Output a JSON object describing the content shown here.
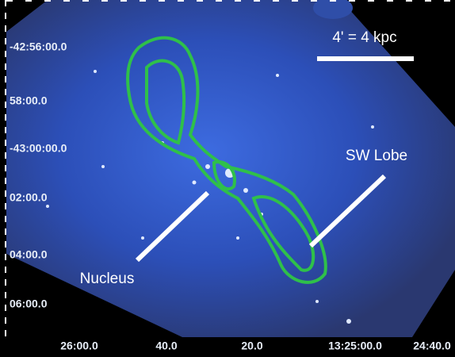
{
  "dec_labels": [
    "-42:56:00.0",
    "58:00.0",
    "-43:00:00.0",
    "02:00.0",
    "04:00.0",
    "06:00.0"
  ],
  "ra_labels": [
    "26:00.0",
    "40.0",
    "20.0",
    "13:25:00.0",
    "24:40.0"
  ],
  "annotations": {
    "scale": "4' = 4 kpc",
    "lobe": "SW Lobe",
    "nucleus": "Nucleus"
  }
}
